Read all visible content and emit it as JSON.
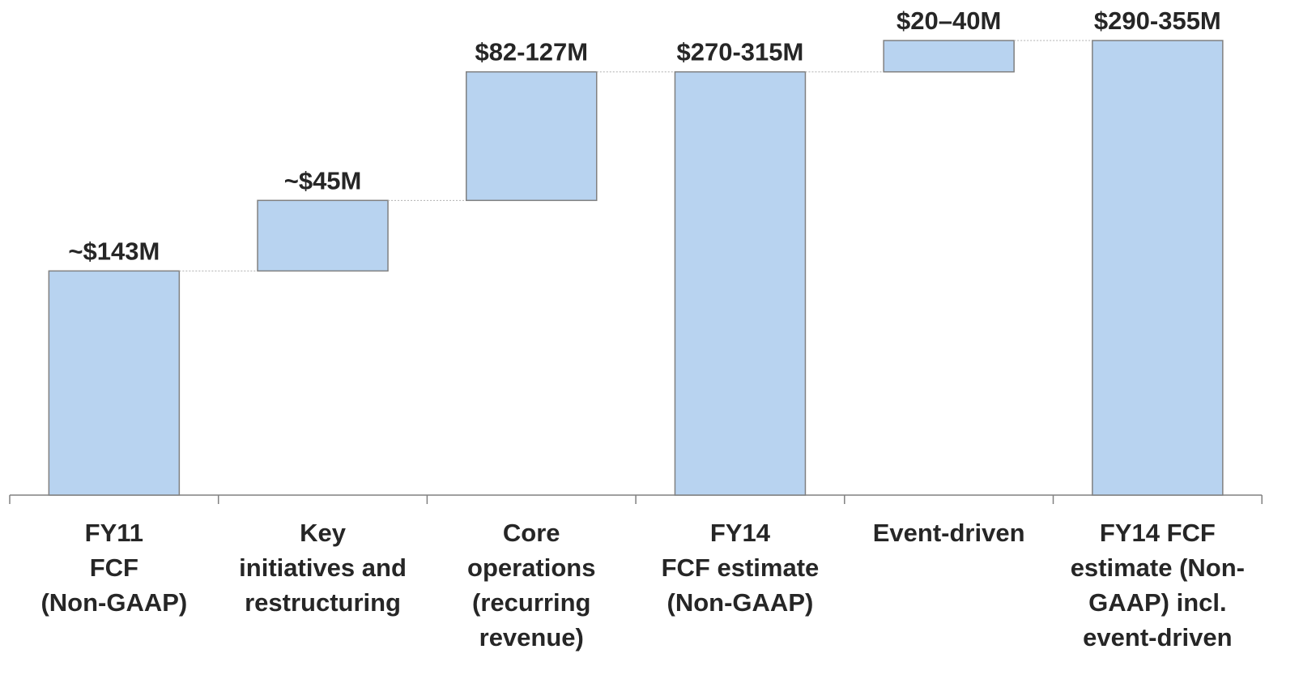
{
  "chart_data": {
    "type": "waterfall",
    "categories": [
      "FY11\nFCF\n(Non-GAAP)",
      "Key\ninitiatives and\nrestructuring",
      "Core\noperations\n(recurring\nrevenue)",
      "FY14\nFCF estimate\n(Non-GAAP)",
      "Event-driven",
      "FY14 FCF\nestimate (Non-\nGAAP) incl.\nevent-driven"
    ],
    "values": [
      143,
      45,
      82,
      270,
      20,
      290
    ],
    "value_labels": [
      "~$143M",
      "~$45M",
      "$82-127M",
      "$270-315M",
      "$20–40M",
      "$290-355M"
    ],
    "total": [
      true,
      false,
      false,
      true,
      false,
      true
    ],
    "color": "#b8d3f0"
  }
}
